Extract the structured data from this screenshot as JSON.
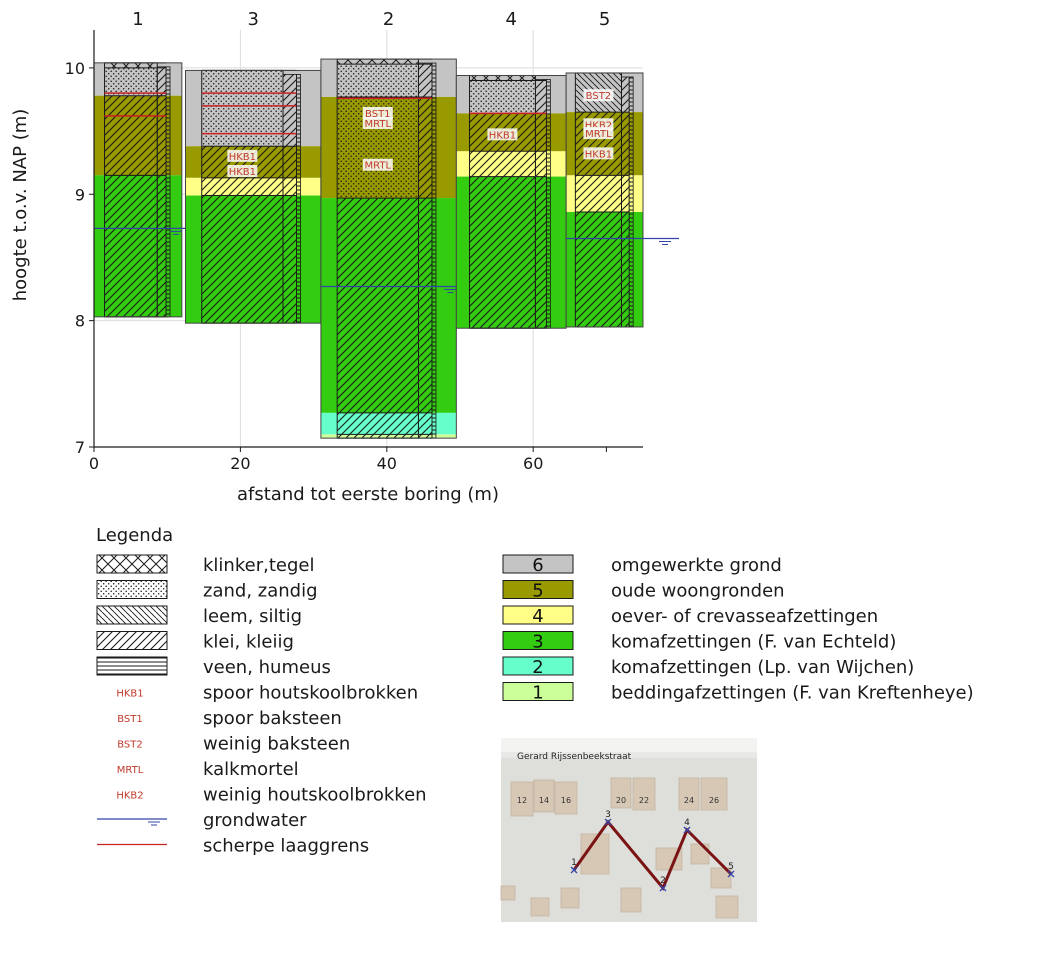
{
  "chart_data": {
    "type": "soil-profile",
    "xlabel": "afstand tot eerste boring (m)",
    "ylabel": "hoogte t.o.v. NAP (m)",
    "xlim": [
      0,
      75
    ],
    "ylim": [
      7,
      10.3
    ],
    "xticks": [
      0,
      20,
      40,
      60
    ],
    "yticks": [
      7,
      8,
      9,
      10
    ],
    "grid": true,
    "borings": [
      {
        "label": "1",
        "x": 0,
        "width": 12,
        "top": 10.04,
        "bottom": 8.03,
        "groundwater": 8.73,
        "units": [
          {
            "unit": 6,
            "top": 10.04,
            "bottom": 9.78
          },
          {
            "unit": 5,
            "top": 9.78,
            "bottom": 9.15
          },
          {
            "unit": 3,
            "top": 9.15,
            "bottom": 8.03
          }
        ],
        "lithology": [
          {
            "type": "klinker",
            "top": 10.04,
            "bottom": 10.0
          },
          {
            "type": "zand",
            "top": 10.0,
            "bottom": 9.78
          },
          {
            "type": "klei",
            "top": 9.78,
            "bottom": 8.03
          }
        ],
        "sharp": [
          9.8,
          9.62
        ]
      },
      {
        "label": "3",
        "x": 12.5,
        "width": 18.5,
        "top": 9.98,
        "bottom": 7.98,
        "groundwater": null,
        "units": [
          {
            "unit": 6,
            "top": 9.98,
            "bottom": 9.38
          },
          {
            "unit": 5,
            "top": 9.38,
            "bottom": 9.13
          },
          {
            "unit": 4,
            "top": 9.13,
            "bottom": 8.99
          },
          {
            "unit": 3,
            "top": 8.99,
            "bottom": 7.98
          }
        ],
        "lithology": [
          {
            "type": "zand",
            "top": 9.98,
            "bottom": 9.38
          },
          {
            "type": "klei",
            "top": 9.38,
            "bottom": 7.98
          }
        ],
        "sharp": [
          9.8,
          9.7,
          9.48
        ],
        "codes": [
          {
            "code": "HKB1",
            "y": 9.3
          },
          {
            "code": "HKB1",
            "y": 9.18
          }
        ]
      },
      {
        "label": "2",
        "x": 31,
        "width": 18.5,
        "top": 10.07,
        "bottom": 7.07,
        "groundwater": 8.27,
        "units": [
          {
            "unit": 6,
            "top": 10.07,
            "bottom": 9.77
          },
          {
            "unit": 5,
            "top": 9.77,
            "bottom": 8.97
          },
          {
            "unit": 3,
            "top": 8.97,
            "bottom": 7.27
          },
          {
            "unit": 2,
            "top": 7.27,
            "bottom": 7.1
          },
          {
            "unit": 1,
            "top": 7.1,
            "bottom": 7.07
          }
        ],
        "lithology": [
          {
            "type": "klinker",
            "top": 10.07,
            "bottom": 10.03
          },
          {
            "type": "zand",
            "top": 10.03,
            "bottom": 8.97
          },
          {
            "type": "klei",
            "top": 8.97,
            "bottom": 7.07
          }
        ],
        "sharp": [
          9.76
        ],
        "codes": [
          {
            "code": "BST1",
            "y": 9.64
          },
          {
            "code": "MRTL",
            "y": 9.56
          },
          {
            "code": "MRTL",
            "y": 9.23
          }
        ]
      },
      {
        "label": "4",
        "x": 49.5,
        "width": 15,
        "top": 9.94,
        "bottom": 7.94,
        "groundwater": null,
        "units": [
          {
            "unit": 6,
            "top": 9.94,
            "bottom": 9.64
          },
          {
            "unit": 5,
            "top": 9.64,
            "bottom": 9.34
          },
          {
            "unit": 4,
            "top": 9.34,
            "bottom": 9.14
          },
          {
            "unit": 3,
            "top": 9.14,
            "bottom": 7.94
          }
        ],
        "lithology": [
          {
            "type": "klinker",
            "top": 9.94,
            "bottom": 9.9
          },
          {
            "type": "zand",
            "top": 9.9,
            "bottom": 9.64
          },
          {
            "type": "klei",
            "top": 9.64,
            "bottom": 7.94
          }
        ],
        "sharp": [
          9.64
        ],
        "codes": [
          {
            "code": "HKB1",
            "y": 9.47
          }
        ]
      },
      {
        "label": "5",
        "x": 64.5,
        "width": 10.5,
        "top": 9.96,
        "bottom": 7.95,
        "groundwater": 8.65,
        "units": [
          {
            "unit": 6,
            "top": 9.96,
            "bottom": 9.65
          },
          {
            "unit": 5,
            "top": 9.65,
            "bottom": 9.15
          },
          {
            "unit": 4,
            "top": 9.15,
            "bottom": 8.86
          },
          {
            "unit": 3,
            "top": 8.86,
            "bottom": 7.95
          }
        ],
        "lithology": [
          {
            "type": "leem",
            "top": 9.96,
            "bottom": 9.65
          },
          {
            "type": "klei",
            "top": 9.65,
            "bottom": 7.95
          }
        ],
        "codes": [
          {
            "code": "BST2",
            "y": 9.78
          },
          {
            "code": "HKB2",
            "y": 9.55
          },
          {
            "code": "MRTL",
            "y": 9.48
          },
          {
            "code": "HKB1",
            "y": 9.32
          }
        ]
      }
    ]
  },
  "colors": {
    "unit6": "#c4c4c4",
    "unit5": "#999900",
    "unit4": "#ffff88",
    "unit3": "#33cc11",
    "unit2": "#66ffcc",
    "unit1": "#ccff99",
    "groundwater": "#3344aa",
    "sharp": "#cc2222",
    "code": "#c0392b"
  },
  "legend": {
    "title": "Legenda",
    "lithology": [
      {
        "pattern": "klinker",
        "label": "klinker,tegel"
      },
      {
        "pattern": "zand",
        "label": "zand, zandig"
      },
      {
        "pattern": "leem",
        "label": "leem, siltig"
      },
      {
        "pattern": "klei",
        "label": "klei, kleiig"
      },
      {
        "pattern": "veen",
        "label": "veen, humeus"
      },
      {
        "code": "HKB1",
        "label": "spoor houtskoolbrokken"
      },
      {
        "code": "BST1",
        "label": "spoor baksteen"
      },
      {
        "code": "BST2",
        "label": "weinig baksteen"
      },
      {
        "code": "MRTL",
        "label": "kalkmortel"
      },
      {
        "code": "HKB2",
        "label": "weinig houtskoolbrokken"
      },
      {
        "symbol": "groundwater",
        "label": "grondwater"
      },
      {
        "symbol": "sharp",
        "label": "scherpe laaggrens"
      }
    ],
    "units": [
      {
        "number": "6",
        "color": "#c4c4c4",
        "label": "omgewerkte grond"
      },
      {
        "number": "5",
        "color": "#999900",
        "label": "oude woongronden"
      },
      {
        "number": "4",
        "color": "#ffff88",
        "label": "oever- of crevasseafzettingen"
      },
      {
        "number": "3",
        "color": "#33cc11",
        "label": "komafzettingen (F. van Echteld)"
      },
      {
        "number": "2",
        "color": "#66ffcc",
        "label": "komafzettingen (Lp. van Wijchen)"
      },
      {
        "number": "1",
        "color": "#ccff99",
        "label": "beddingafzettingen (F. van Kreftenheye)"
      }
    ]
  },
  "map": {
    "street": "Gerard Rijssenbeekstraat",
    "house_numbers": [
      "12",
      "14",
      "16",
      "20",
      "22",
      "24",
      "26"
    ],
    "points": [
      "1",
      "3",
      "2",
      "4",
      "5"
    ]
  }
}
